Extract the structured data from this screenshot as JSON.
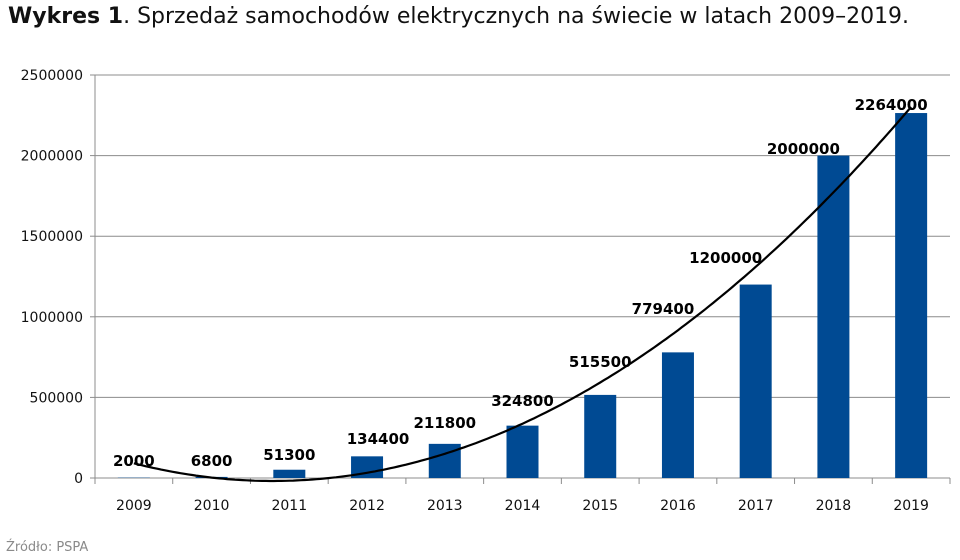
{
  "title": {
    "lead": "Wykres 1",
    "text": ".  Sprzedaż samochodów elektrycznych na świecie w latach 2009–2019."
  },
  "source": "Źródło: PSPA",
  "colors": {
    "bar": "#004a93",
    "grid": "#8c8c8c",
    "trend": "#000000"
  },
  "chart_data": {
    "type": "bar",
    "categories": [
      "2009",
      "2010",
      "2011",
      "2012",
      "2013",
      "2014",
      "2015",
      "2016",
      "2017",
      "2018",
      "2019"
    ],
    "values": [
      2000,
      6800,
      51300,
      134400,
      211800,
      324800,
      515500,
      779400,
      1200000,
      2000000,
      2264000
    ],
    "data_labels": [
      "2000",
      "6800",
      "51300",
      "134400",
      "211800",
      "324800",
      "515500",
      "779400",
      "1200000",
      "2000000",
      "2264000"
    ],
    "ylim": [
      0,
      2500000
    ],
    "yticks": [
      0,
      500000,
      1000000,
      1500000,
      2000000,
      2500000
    ],
    "ytick_labels": [
      "0",
      "500000",
      "1000000",
      "1500000",
      "2000000",
      "2500000"
    ],
    "grid": true,
    "legend": "none",
    "trendline": "polynomial"
  }
}
